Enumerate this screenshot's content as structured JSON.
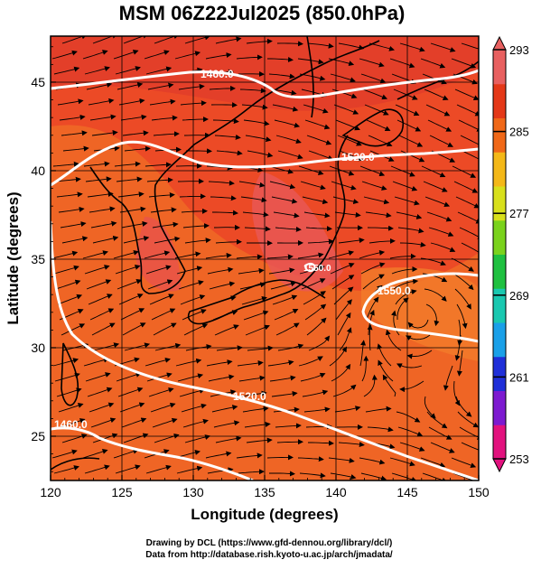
{
  "title": "MSM 06Z22Jul2025 (850.0hPa)",
  "x_axis": {
    "label": "Longitude (degrees)",
    "ticks": [
      "120",
      "125",
      "130",
      "135",
      "140",
      "145",
      "150"
    ],
    "range": [
      120,
      150
    ]
  },
  "y_axis": {
    "label": "Latitude  (degrees)",
    "ticks": [
      "25",
      "30",
      "35",
      "40",
      "45"
    ],
    "range": [
      22.5,
      47.6
    ]
  },
  "colorbar": {
    "ticks": [
      "293",
      "285",
      "277",
      "269",
      "261",
      "253"
    ],
    "range": [
      253,
      293
    ],
    "colors": [
      "#e2127e",
      "#7d1ad0",
      "#1f2fd8",
      "#1aa0e8",
      "#1ac8b0",
      "#1fc040",
      "#7ad21c",
      "#d8e01c",
      "#f4b818",
      "#f06818",
      "#e43818",
      "#e86060"
    ]
  },
  "contours": [
    {
      "label": "1460.0"
    },
    {
      "label": "1520.0"
    },
    {
      "label": "1550.0"
    },
    {
      "label": "1520.0"
    },
    {
      "label": "1460.0"
    },
    {
      "label": "1550.0"
    }
  ],
  "credits": {
    "line1": "Drawing by DCL (https://www.gfd-dennou.org/library/dcl/)",
    "line2": "Data from http://database.rish.kyoto-u.ac.jp/arch/jmadata/"
  },
  "colors": {
    "field_base": "#ec4a26",
    "field_warm": "#f06a26",
    "field_cool": "#e84848",
    "contour": "#ffffff"
  }
}
